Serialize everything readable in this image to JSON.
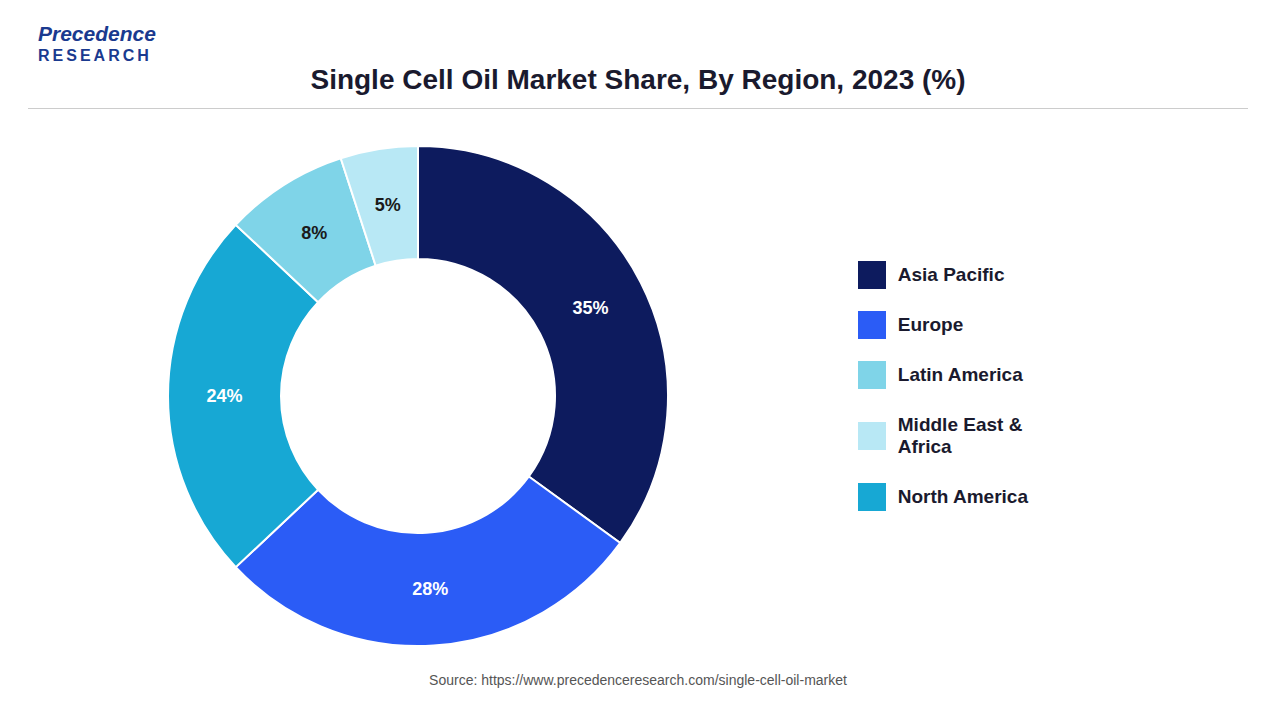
{
  "chart_data": {
    "type": "pie",
    "title": "Single Cell Oil Market Share, By Region, 2023 (%)",
    "categories": [
      "Asia Pacific",
      "Europe",
      "North America",
      "Latin America",
      "Middle East &\nAfrica"
    ],
    "values": [
      35,
      28,
      24,
      8,
      5
    ],
    "value_labels": [
      "35%",
      "28%",
      "24%",
      "8%",
      "5%"
    ],
    "colors": [
      "#0d1b5e",
      "#2b5cf6",
      "#17a8d4",
      "#7fd4e8",
      "#b8e8f5"
    ],
    "data_labels": true,
    "legend": "right",
    "annotations": [
      "Precedence",
      "RESEARCH",
      "Source: https://www.precedenceresearch.com/single-cell-oil-market"
    ]
  }
}
